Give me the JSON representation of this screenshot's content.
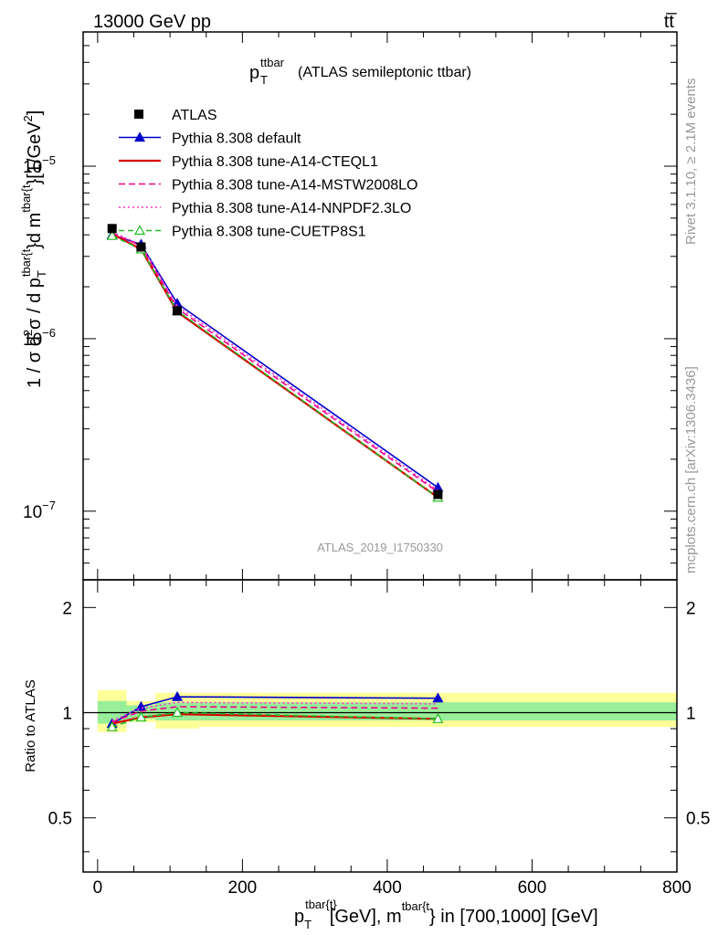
{
  "header": {
    "left": "13000 GeV pp",
    "right": "tt̅"
  },
  "side_texts": {
    "rivet": "Rivet 3.1.10, ≥ 2.1M events",
    "mcplots": "mcplots.cern.ch [arXiv:1306.3436]"
  },
  "analysis_label": "ATLAS_2019_I1750330",
  "colors": {
    "data": "#000000",
    "default": "#0000cc",
    "cteql1": "#dd0000",
    "mstw": "#ee0088",
    "nnpdf": "#ff33cc",
    "cuetp8s1": "#22bb22",
    "band_inner": "#99ee99",
    "band_outer": "#ffff99",
    "axis": "#000000",
    "watermark": "#999999"
  },
  "chart_data": [
    {
      "type": "line",
      "title_main": "p",
      "title_sub": "T",
      "title_sup": "ttbar",
      "title_rest": "(ATLAS semileptonic ttbar)",
      "ylabel": "1 / σ d²σ / d p_T^{tbar{t}} d m^{tbar{t}} [1/GeV²]",
      "ylabel_parts": {
        "a": "1 / σ d",
        "b": "2",
        "c": "σ / d p",
        "d": "T",
        "e": "tbar{t",
        "f": "}d m",
        "g": "tbar{t",
        "h": "}[1/GeV",
        "i": "2",
        "j": "]"
      },
      "log_y": true,
      "xlim": [
        -20,
        800
      ],
      "ylim": [
        4e-08,
        6e-05
      ],
      "y_ticks": [
        {
          "value": 1e-05,
          "base": "10",
          "exp": "−5"
        },
        {
          "value": 1e-06,
          "base": "10",
          "exp": "−6"
        },
        {
          "value": 1e-07,
          "base": "10",
          "exp": "−7"
        }
      ],
      "legend_position": "upper-left",
      "data": {
        "name": "ATLAS",
        "x": [
          20,
          60,
          110,
          470
        ],
        "y": [
          4.35e-06,
          3.4e-06,
          1.45e-06,
          1.25e-07
        ]
      },
      "series": [
        {
          "name": "Pythia 8.308 default",
          "key": "default",
          "dash": "",
          "marker": "triangle-filled",
          "x": [
            20,
            60,
            110,
            470
          ],
          "y": [
            4e-06,
            3.52e-06,
            1.6e-06,
            1.37e-07
          ]
        },
        {
          "name": "Pythia 8.308 tune-A14-CTEQL1",
          "key": "cteql1",
          "dash": "",
          "marker": "none",
          "x": [
            20,
            60,
            110,
            470
          ],
          "y": [
            4.05e-06,
            3.3e-06,
            1.43e-06,
            1.2e-07
          ]
        },
        {
          "name": "Pythia 8.308 tune-A14-MSTW2008LO",
          "key": "mstw",
          "dash": "7,4",
          "marker": "none",
          "x": [
            20,
            60,
            110,
            470
          ],
          "y": [
            4.1e-06,
            3.45e-06,
            1.5e-06,
            1.29e-07
          ]
        },
        {
          "name": "Pythia 8.308 tune-A14-NNPDF2.3LO",
          "key": "nnpdf",
          "dash": "2,3",
          "marker": "none",
          "x": [
            20,
            60,
            110,
            470
          ],
          "y": [
            4.15e-06,
            3.5e-06,
            1.55e-06,
            1.32e-07
          ]
        },
        {
          "name": "Pythia 8.308 tune-CUETP8S1",
          "key": "cuetp8s1",
          "dash": "6,4",
          "marker": "triangle-open",
          "x": [
            20,
            60,
            110,
            470
          ],
          "y": [
            3.95e-06,
            3.3e-06,
            1.45e-06,
            1.2e-07
          ]
        }
      ]
    },
    {
      "type": "line",
      "ylabel": "Ratio to ATLAS",
      "log_y": true,
      "xlim": [
        -20,
        800
      ],
      "ylim": [
        0.35,
        2.4
      ],
      "y_ticks": [
        {
          "value": 2,
          "label": "2"
        },
        {
          "value": 1,
          "label": "1"
        },
        {
          "value": 0.5,
          "label": "0.5"
        }
      ],
      "x_ticks": [
        0,
        200,
        400,
        600,
        800
      ],
      "x_tick_labels": [
        "0",
        "200",
        "400",
        "600",
        "800"
      ],
      "xlabel_parts": {
        "p": "p",
        "t": "T",
        "sup1": "tbar{t}",
        "mid": "[GeV], m",
        "sup2": "tbar{t",
        "rest": "} in [700,1000] [GeV]"
      },
      "bands": [
        {
          "x0": 0,
          "x1": 40,
          "inner": [
            0.93,
            1.08
          ],
          "outer": [
            0.88,
            1.16
          ]
        },
        {
          "x0": 40,
          "x1": 80,
          "inner": [
            0.96,
            1.05
          ],
          "outer": [
            0.94,
            1.08
          ]
        },
        {
          "x0": 80,
          "x1": 140,
          "inner": [
            0.95,
            1.07
          ],
          "outer": [
            0.9,
            1.14
          ]
        },
        {
          "x0": 140,
          "x1": 800,
          "inner": [
            0.95,
            1.07
          ],
          "outer": [
            0.91,
            1.14
          ]
        }
      ],
      "series": [
        {
          "key": "default",
          "dash": "",
          "marker": "triangle-filled",
          "x": [
            20,
            60,
            110,
            470
          ],
          "y": [
            0.93,
            1.04,
            1.11,
            1.1
          ]
        },
        {
          "key": "cteql1",
          "dash": "",
          "marker": "none",
          "x": [
            20,
            60,
            110,
            470
          ],
          "y": [
            0.93,
            0.97,
            0.99,
            0.96
          ]
        },
        {
          "key": "mstw",
          "dash": "7,4",
          "marker": "none",
          "x": [
            20,
            60,
            110,
            470
          ],
          "y": [
            0.94,
            1.01,
            1.04,
            1.03
          ]
        },
        {
          "key": "nnpdf",
          "dash": "2,3",
          "marker": "none",
          "x": [
            20,
            60,
            110,
            470
          ],
          "y": [
            0.95,
            1.03,
            1.07,
            1.06
          ]
        },
        {
          "key": "cuetp8s1",
          "dash": "6,4",
          "marker": "triangle-open",
          "x": [
            20,
            60,
            110,
            470
          ],
          "y": [
            0.91,
            0.97,
            1.0,
            0.96
          ]
        }
      ]
    }
  ]
}
